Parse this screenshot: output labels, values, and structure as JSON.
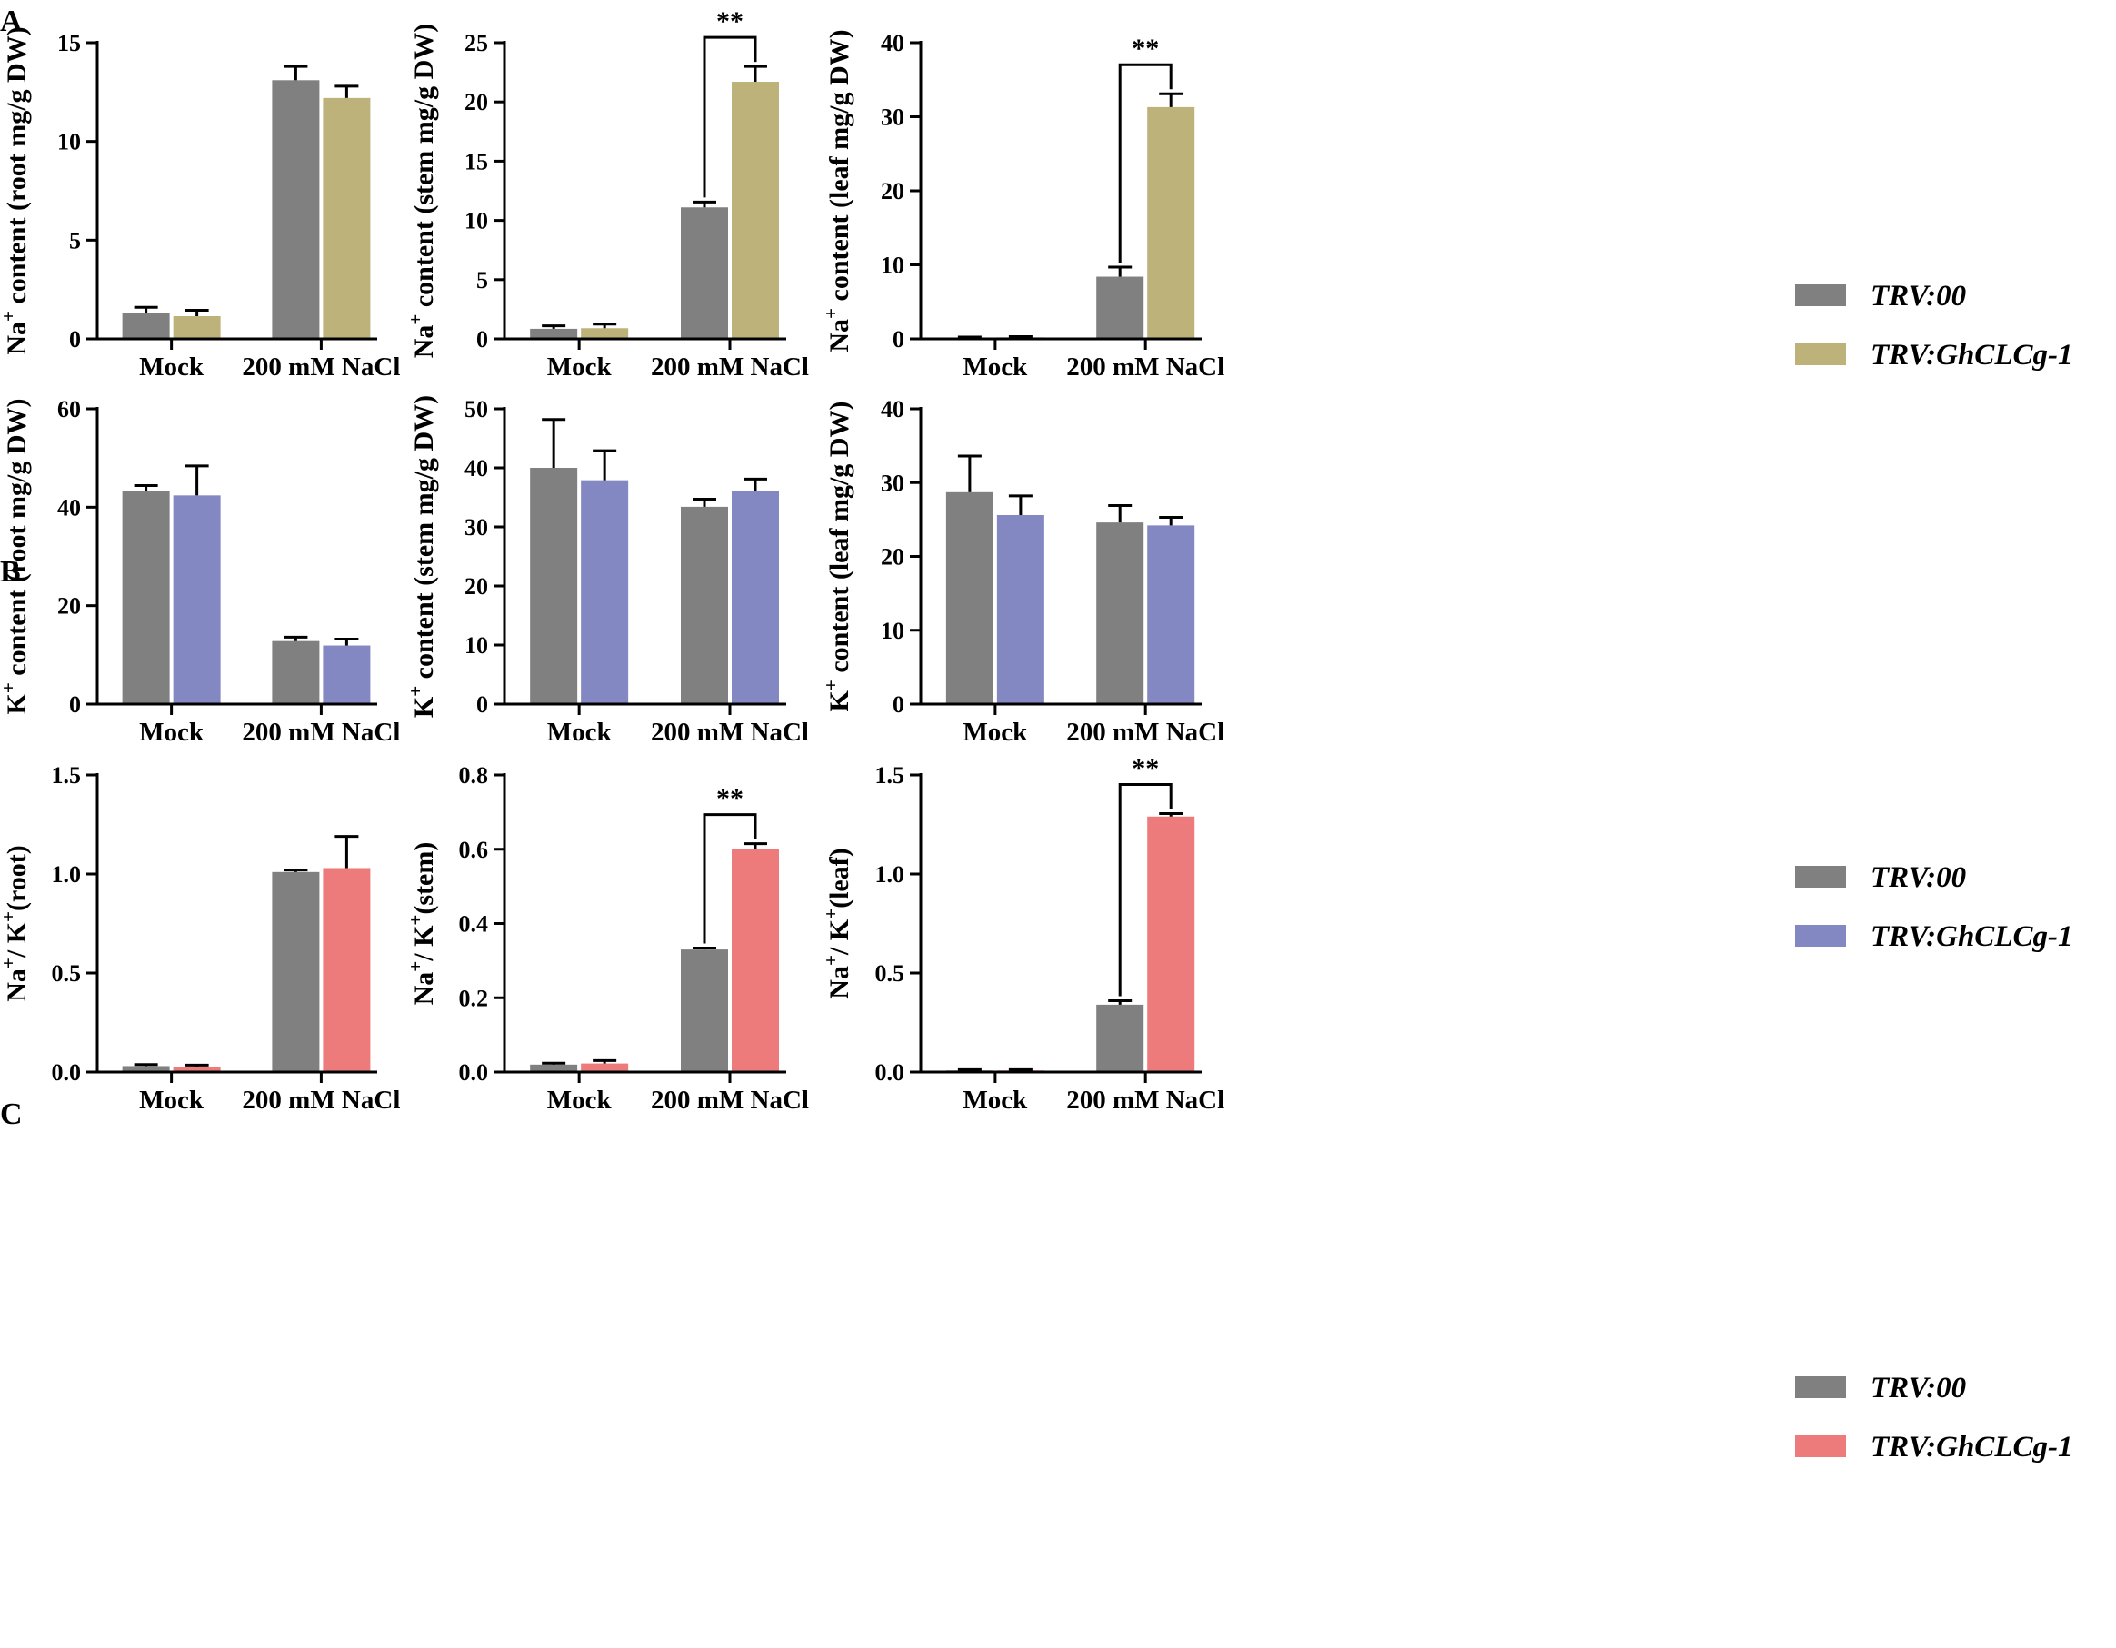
{
  "panel_labels": [
    "A",
    "B",
    "C"
  ],
  "colors": {
    "control": "#808080",
    "na_treatment": "#bdb27a",
    "k_treatment": "#8488c2",
    "ratio_treatment": "#ee7b7b"
  },
  "legends": [
    {
      "entries": [
        "TRV:00",
        "TRV:GhCLCg-1"
      ],
      "colors": [
        "#808080",
        "#bdb27a"
      ]
    },
    {
      "entries": [
        "TRV:00",
        "TRV:GhCLCg-1"
      ],
      "colors": [
        "#808080",
        "#8488c2"
      ]
    },
    {
      "entries": [
        "TRV:00",
        "TRV:GhCLCg-1"
      ],
      "colors": [
        "#808080",
        "#ee7b7b"
      ]
    }
  ],
  "significance_label": "**",
  "chart_data": [
    {
      "type": "bar",
      "panel": "A",
      "ylabel_base": "Na",
      "ylabel_sup": "+",
      "ylabel_rest": " content (root mg/g DW)",
      "categories": [
        "Mock",
        "200 mM NaCl"
      ],
      "ylim": [
        0,
        15
      ],
      "yticks": [
        0,
        5,
        10,
        15
      ],
      "ytick_labels": [
        "0",
        "5",
        "10",
        "15"
      ],
      "series": [
        {
          "name": "TRV:00",
          "values": [
            1.3,
            13.1
          ],
          "errors": [
            0.3,
            0.7
          ]
        },
        {
          "name": "TRV:GhCLCg-1",
          "values": [
            1.15,
            12.2
          ],
          "errors": [
            0.3,
            0.6
          ]
        }
      ],
      "significance": []
    },
    {
      "type": "bar",
      "panel": "A",
      "ylabel_base": "Na",
      "ylabel_sup": "+",
      "ylabel_rest": " content (stem mg/g DW)",
      "categories": [
        "Mock",
        "200 mM NaCl"
      ],
      "ylim": [
        0,
        25
      ],
      "yticks": [
        0,
        5,
        10,
        15,
        20,
        25
      ],
      "ytick_labels": [
        "0",
        "5",
        "10",
        "15",
        "20",
        "25"
      ],
      "series": [
        {
          "name": "TRV:00",
          "values": [
            0.85,
            11.1
          ],
          "errors": [
            0.25,
            0.45
          ]
        },
        {
          "name": "TRV:GhCLCg-1",
          "values": [
            0.9,
            21.7
          ],
          "errors": [
            0.35,
            1.3
          ]
        }
      ],
      "significance": [
        {
          "category": 1,
          "label": "**"
        }
      ]
    },
    {
      "type": "bar",
      "panel": "A",
      "ylabel_base": "Na",
      "ylabel_sup": "+",
      "ylabel_rest": " content (leaf mg/g DW)",
      "categories": [
        "Mock",
        "200 mM NaCl"
      ],
      "ylim": [
        0,
        40
      ],
      "yticks": [
        0,
        10,
        20,
        30,
        40
      ],
      "ytick_labels": [
        "0",
        "10",
        "20",
        "30",
        "40"
      ],
      "series": [
        {
          "name": "TRV:00",
          "values": [
            0.15,
            8.4
          ],
          "errors": [
            0.1,
            1.3
          ]
        },
        {
          "name": "TRV:GhCLCg-1",
          "values": [
            0.2,
            31.3
          ],
          "errors": [
            0.1,
            1.8
          ]
        }
      ],
      "significance": [
        {
          "category": 1,
          "label": "**"
        }
      ]
    },
    {
      "type": "bar",
      "panel": "B",
      "ylabel_base": "K",
      "ylabel_sup": "+",
      "ylabel_rest": " content (root mg/g DW)",
      "categories": [
        "Mock",
        "200 mM NaCl"
      ],
      "ylim": [
        0,
        60
      ],
      "yticks": [
        0,
        20,
        40,
        60
      ],
      "ytick_labels": [
        "0",
        "20",
        "40",
        "60"
      ],
      "series": [
        {
          "name": "TRV:00",
          "values": [
            43.2,
            12.8
          ],
          "errors": [
            1.2,
            0.8
          ]
        },
        {
          "name": "TRV:GhCLCg-1",
          "values": [
            42.4,
            11.9
          ],
          "errors": [
            6.0,
            1.3
          ]
        }
      ],
      "significance": []
    },
    {
      "type": "bar",
      "panel": "B",
      "ylabel_base": "K",
      "ylabel_sup": "+",
      "ylabel_rest": " content (stem mg/g DW)",
      "categories": [
        "Mock",
        "200 mM NaCl"
      ],
      "ylim": [
        0,
        50
      ],
      "yticks": [
        0,
        10,
        20,
        30,
        40,
        50
      ],
      "ytick_labels": [
        "0",
        "10",
        "20",
        "30",
        "40",
        "50"
      ],
      "series": [
        {
          "name": "TRV:00",
          "values": [
            40.0,
            33.4
          ],
          "errors": [
            8.2,
            1.3
          ]
        },
        {
          "name": "TRV:GhCLCg-1",
          "values": [
            37.9,
            36.0
          ],
          "errors": [
            5.0,
            2.1
          ]
        }
      ],
      "significance": []
    },
    {
      "type": "bar",
      "panel": "B",
      "ylabel_base": "K",
      "ylabel_sup": "+",
      "ylabel_rest": " content (leaf mg/g DW)",
      "categories": [
        "Mock",
        "200 mM NaCl"
      ],
      "ylim": [
        0,
        40
      ],
      "yticks": [
        0,
        10,
        20,
        30,
        40
      ],
      "ytick_labels": [
        "0",
        "10",
        "20",
        "30",
        "40"
      ],
      "series": [
        {
          "name": "TRV:00",
          "values": [
            28.7,
            24.6
          ],
          "errors": [
            4.9,
            2.3
          ]
        },
        {
          "name": "TRV:GhCLCg-1",
          "values": [
            25.6,
            24.2
          ],
          "errors": [
            2.6,
            1.1
          ]
        }
      ],
      "significance": []
    },
    {
      "type": "bar",
      "panel": "C",
      "ylabel_base": "Na",
      "ylabel_sup": "+",
      "ylabel_mid": "/ K",
      "ylabel_sup2": "+",
      "ylabel_rest": "(root)",
      "categories": [
        "Mock",
        "200 mM NaCl"
      ],
      "ylim": [
        0,
        1.5
      ],
      "yticks": [
        0,
        0.5,
        1.0,
        1.5
      ],
      "ytick_labels": [
        "0.0",
        "0.5",
        "1.0",
        "1.5"
      ],
      "series": [
        {
          "name": "TRV:00",
          "values": [
            0.03,
            1.01
          ],
          "errors": [
            0.008,
            0.01
          ]
        },
        {
          "name": "TRV:GhCLCg-1",
          "values": [
            0.027,
            1.03
          ],
          "errors": [
            0.008,
            0.16
          ]
        }
      ],
      "significance": []
    },
    {
      "type": "bar",
      "panel": "C",
      "ylabel_base": "Na",
      "ylabel_sup": "+",
      "ylabel_mid": "/ K",
      "ylabel_sup2": "+",
      "ylabel_rest": "(stem)",
      "categories": [
        "Mock",
        "200 mM NaCl"
      ],
      "ylim": [
        0,
        0.8
      ],
      "yticks": [
        0,
        0.2,
        0.4,
        0.6,
        0.8
      ],
      "ytick_labels": [
        "0.0",
        "0.2",
        "0.4",
        "0.6",
        "0.8"
      ],
      "series": [
        {
          "name": "TRV:00",
          "values": [
            0.02,
            0.33
          ],
          "errors": [
            0.004,
            0.004
          ]
        },
        {
          "name": "TRV:GhCLCg-1",
          "values": [
            0.023,
            0.6
          ],
          "errors": [
            0.008,
            0.015
          ]
        }
      ],
      "significance": [
        {
          "category": 1,
          "label": "**"
        }
      ]
    },
    {
      "type": "bar",
      "panel": "C",
      "ylabel_base": "Na",
      "ylabel_sup": "+",
      "ylabel_mid": "/ K",
      "ylabel_sup2": "+",
      "ylabel_rest": "(leaf)",
      "categories": [
        "Mock",
        "200 mM NaCl"
      ],
      "ylim": [
        0,
        1.5
      ],
      "yticks": [
        0,
        0.5,
        1.0,
        1.5
      ],
      "ytick_labels": [
        "0.0",
        "0.5",
        "1.0",
        "1.5"
      ],
      "series": [
        {
          "name": "TRV:00",
          "values": [
            0.008,
            0.34
          ],
          "errors": [
            0.004,
            0.02
          ]
        },
        {
          "name": "TRV:GhCLCg-1",
          "values": [
            0.008,
            1.29
          ],
          "errors": [
            0.004,
            0.015
          ]
        }
      ],
      "significance": [
        {
          "category": 1,
          "label": "**"
        }
      ]
    }
  ]
}
